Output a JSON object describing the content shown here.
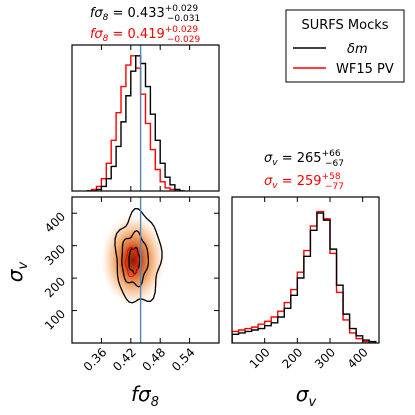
{
  "chart_data": {
    "type": "corner",
    "parameters": [
      {
        "id": "fs8",
        "label": "fσ8",
        "label_base": "fσ",
        "label_sub": "8",
        "range": [
          0.3,
          0.6
        ],
        "ticks": [
          0.36,
          0.42,
          0.48,
          0.54
        ],
        "tick_labels": [
          "0.36",
          "0.42",
          "0.48",
          "0.54"
        ]
      },
      {
        "id": "sv",
        "label": "σv",
        "label_base": "σ",
        "label_sub": "v",
        "range": [
          0,
          450
        ],
        "ticks_x": [
          100,
          200,
          300,
          400
        ],
        "tick_labels_x": [
          "100",
          "200",
          "300",
          "400"
        ],
        "ticks_y": [
          100,
          200,
          300,
          400
        ],
        "tick_labels_y": [
          "100",
          "200",
          "300",
          "400"
        ]
      }
    ],
    "legend": {
      "title": "SURFS Mocks",
      "position": "top-right",
      "entries": [
        {
          "label": "δm",
          "color": "#000000"
        },
        {
          "label": "WF15 PV",
          "color": "#ff0000"
        }
      ]
    },
    "series": [
      {
        "name": "δm",
        "color": "#000000",
        "fs8": {
          "value": "0.433",
          "plus": "+0.029",
          "minus": "−0.031",
          "median": 0.433
        },
        "sv": {
          "value": "265",
          "plus": "+66",
          "minus": "−67",
          "median": 265
        }
      },
      {
        "name": "WF15 PV",
        "color": "#ff0000",
        "fs8": {
          "value": "0.419",
          "plus": "+0.029",
          "minus": "−0.029",
          "median": 0.419
        },
        "sv": {
          "value": "259",
          "plus": "+58",
          "minus": "−77",
          "median": 259
        }
      }
    ],
    "annotations": {
      "fs8_title_prefix": "fσ8 = ",
      "sv_title_prefix": "σv = "
    },
    "truth_line": {
      "fs8": 0.44,
      "color": "#4f86b6"
    },
    "hist_fs8": {
      "bins": [
        0.335,
        0.345,
        0.355,
        0.365,
        0.375,
        0.385,
        0.395,
        0.405,
        0.415,
        0.425,
        0.435,
        0.445,
        0.455,
        0.465,
        0.475,
        0.485,
        0.495,
        0.505,
        0.515,
        0.525
      ],
      "black": [
        0,
        0,
        1,
        3,
        8,
        16,
        29,
        45,
        62,
        78,
        88,
        83,
        68,
        50,
        33,
        18,
        9,
        4,
        1,
        0
      ],
      "red": [
        0,
        1,
        3,
        8,
        18,
        33,
        51,
        68,
        82,
        88,
        80,
        63,
        44,
        27,
        14,
        6,
        2,
        1,
        0,
        0
      ]
    },
    "hist_sv": {
      "bins": [
        10,
        30,
        50,
        70,
        90,
        110,
        130,
        150,
        170,
        190,
        210,
        230,
        250,
        270,
        290,
        310,
        330,
        350,
        370,
        390,
        410,
        430
      ],
      "black": [
        6,
        7,
        8,
        9,
        10,
        12,
        14,
        18,
        24,
        33,
        45,
        60,
        78,
        90,
        85,
        65,
        40,
        20,
        10,
        5,
        2,
        1
      ],
      "red": [
        8,
        9,
        10,
        11,
        13,
        15,
        18,
        22,
        28,
        37,
        49,
        64,
        81,
        91,
        86,
        62,
        35,
        16,
        7,
        3,
        1,
        0
      ]
    },
    "density_2d": {
      "peak": [
        0.425,
        255
      ],
      "sigma": [
        0.03,
        65
      ],
      "color": "#c2410c"
    },
    "contours": {
      "black": [
        {
          "center": [
            0.427,
            255
          ],
          "radius": [
            0.011,
            38
          ]
        },
        {
          "center": [
            0.428,
            258
          ],
          "radius": [
            0.027,
            80
          ]
        },
        {
          "center": [
            0.435,
            262
          ],
          "radius": [
            0.046,
            140
          ]
        }
      ],
      "red": [
        {
          "center": [
            0.422,
            250
          ],
          "radius": [
            0.012,
            45
          ]
        }
      ]
    }
  }
}
